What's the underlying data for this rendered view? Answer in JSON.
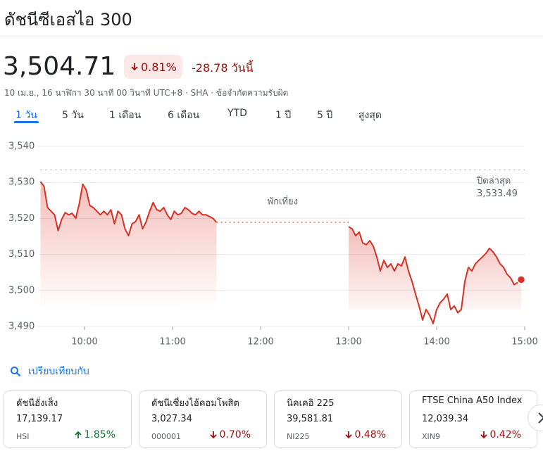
{
  "header": {
    "title": "ดัชนีซีเอสไอ 300"
  },
  "quote": {
    "price": "3,504.71",
    "change_percent": "0.81%",
    "change": "-28.78 วันนี้",
    "direction": "down",
    "timestamp": "10 เม.ย., 16 นาฬิกา 30 นาที 00 วินาที UTC+8 · SHA · ข้อจำกัดความรับผิด"
  },
  "tabs": {
    "items": [
      "1 วัน",
      "5 วัน",
      "1 เดือน",
      "6 เดือน",
      "YTD",
      "1 ปี",
      "5 ปี",
      "สูงสุด"
    ],
    "active": 0
  },
  "chart_data": {
    "type": "line",
    "x": [
      9.5,
      9.54,
      9.58,
      9.62,
      9.66,
      9.7,
      9.74,
      9.78,
      9.82,
      9.86,
      9.9,
      9.94,
      9.98,
      10.02,
      10.06,
      10.1,
      10.14,
      10.18,
      10.22,
      10.26,
      10.3,
      10.34,
      10.38,
      10.42,
      10.46,
      10.5,
      10.54,
      10.58,
      10.62,
      10.66,
      10.7,
      10.74,
      10.78,
      10.82,
      10.86,
      10.9,
      10.94,
      10.98,
      11.02,
      11.06,
      11.1,
      11.14,
      11.18,
      11.22,
      11.26,
      11.3,
      11.34,
      11.38,
      11.42,
      11.46,
      11.5,
      12.25,
      13,
      13.04,
      13.08,
      13.12,
      13.16,
      13.2,
      13.24,
      13.28,
      13.32,
      13.36,
      13.4,
      13.44,
      13.48,
      13.52,
      13.56,
      13.6,
      13.64,
      13.68,
      13.72,
      13.76,
      13.8,
      13.84,
      13.88,
      13.92,
      13.96,
      14,
      14.04,
      14.08,
      14.12,
      14.16,
      14.2,
      14.24,
      14.28,
      14.32,
      14.36,
      14.4,
      14.44,
      14.48,
      14.52,
      14.56,
      14.6,
      14.64,
      14.68,
      14.72,
      14.76,
      14.8,
      14.84,
      14.88,
      14.92,
      14.96
    ],
    "series": [
      {
        "color": "#d93025",
        "values": [
          3530.2,
          3528.9,
          3523,
          3522,
          3521,
          3516.6,
          3519.7,
          3521.6,
          3521,
          3521.4,
          3520,
          3524,
          3529.5,
          3527.9,
          3523.6,
          3523,
          3522,
          3521,
          3522,
          3521,
          3522.4,
          3518.5,
          3522,
          3521,
          3517.1,
          3515.2,
          3518.5,
          3519.1,
          3521,
          3517.1,
          3519.1,
          3522,
          3524.4,
          3522.4,
          3522,
          3523,
          3521,
          3519.7,
          3522,
          3521,
          3521.4,
          3523,
          3522.4,
          3521.4,
          3521,
          3522,
          3521,
          3521,
          3520.5,
          3520,
          3518.9,
          null,
          3517.7,
          3517.1,
          3515.2,
          3516.2,
          3513.2,
          3512.7,
          3513.8,
          3512.3,
          3509.3,
          3505.4,
          3508.4,
          3506.4,
          3507.4,
          3505.4,
          3507.4,
          3506.8,
          3509.3,
          3505.4,
          3502.5,
          3499,
          3495.7,
          3491.8,
          3494.7,
          3493.1,
          3490.8,
          3494.7,
          3496.6,
          3497.6,
          3499,
          3494.7,
          3495.7,
          3493.8,
          3494.7,
          3502.5,
          3506.4,
          3505.4,
          3507.4,
          3508.4,
          3509.3,
          3510.3,
          3511.7,
          3510.7,
          3509.3,
          3507.4,
          3506.4,
          3504.5,
          3503.5,
          3501.6,
          3502.2,
          3503
        ]
      }
    ],
    "xlim": [
      9.5,
      15
    ],
    "xticks": [
      {
        "value": 10,
        "label": "10:00"
      },
      {
        "value": 11,
        "label": "11:00"
      },
      {
        "value": 12,
        "label": "12:00"
      },
      {
        "value": 13,
        "label": "13:00"
      },
      {
        "value": 14,
        "label": "14:00"
      },
      {
        "value": 15,
        "label": "15:00"
      }
    ],
    "ylim": [
      3490,
      3540
    ],
    "yticks": [
      {
        "value": 3490,
        "label": "3,490"
      },
      {
        "value": 3500,
        "label": "3,500"
      },
      {
        "value": 3510,
        "label": "3,510"
      },
      {
        "value": 3520,
        "label": "3,520"
      },
      {
        "value": 3530,
        "label": "3,530"
      },
      {
        "value": 3540,
        "label": "3,540"
      }
    ],
    "grid": true,
    "lunch_break_label": "พักเที่ยง",
    "previous_close": {
      "label": "ปิดล่าสุด",
      "value": 3533.49,
      "value_label": "3,533.49"
    }
  },
  "compare": {
    "label": "เปรียบเทียบกับ"
  },
  "cards": [
    {
      "name": "ดัชนีฮั่งเส็ง",
      "price": "17,139.17",
      "symbol": "HSI",
      "change": "1.85%",
      "direction": "up"
    },
    {
      "name": "ดัชนีเซี่ยงไฮ้คอมโพสิต",
      "price": "3,027.34",
      "symbol": "000001",
      "change": "0.70%",
      "direction": "down"
    },
    {
      "name": "นิคเคอิ 225",
      "price": "39,581.81",
      "symbol": "NI225",
      "change": "0.48%",
      "direction": "down"
    },
    {
      "name": "FTSE China A50 Index",
      "price": "12,039.34",
      "symbol": "XIN9",
      "change": "0.42%",
      "direction": "down"
    }
  ]
}
